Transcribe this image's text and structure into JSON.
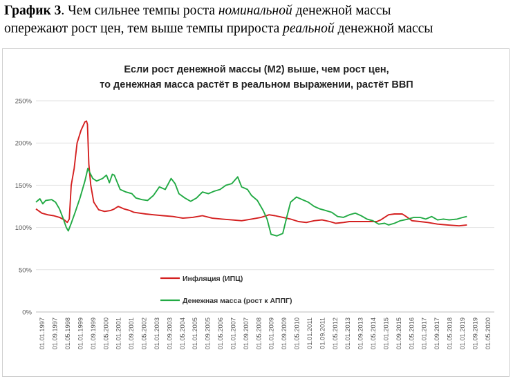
{
  "caption": {
    "label": "График 3",
    "part1": ". Чем сильнее темпы роста ",
    "italic1": "номинальной",
    "part2": " денежной массы",
    "part3": "опережают рост цен, тем выше темпы прироста ",
    "italic2": "реальной",
    "part4": " денежной массы"
  },
  "chart_data": {
    "type": "line",
    "title_line1": "Если рост денежной массы (М2) выше, чем рост цен,",
    "title_line2": "то денежная масса растёт в реальном выражении, растёт ВВП",
    "x_tick_labels": [
      "01.01.1997",
      "01.09.1997",
      "01.05.1998",
      "01.01.1999",
      "01.09.1999",
      "01.05.2000",
      "01.01.2001",
      "01.09.2001",
      "01.05.2002",
      "01.01.2003",
      "01.09.2003",
      "01.05.2004",
      "01.01.2005",
      "01.09.2005",
      "01.05.2006",
      "01.01.2007",
      "01.09.2007",
      "01.05.2008",
      "01.01.2009",
      "01.09.2009",
      "01.05.2010",
      "01.01.2011",
      "01.09.2011",
      "01.05.2012",
      "01.01.2013",
      "01.09.2013",
      "01.05.2014",
      "01.01.2015",
      "01.09.2015",
      "01.05.2016",
      "01.01.2017",
      "01.09.2017",
      "01.05.2018",
      "01.01.2019",
      "01.09.2019",
      "01.05.2020"
    ],
    "y_tick_labels": [
      "0%",
      "50%",
      "100%",
      "150%",
      "200%",
      "250%"
    ],
    "y_ticks": [
      0,
      50,
      100,
      150,
      200,
      250
    ],
    "ylim": [
      0,
      250
    ],
    "xlim": [
      1997.0,
      2020.4
    ],
    "grid": true,
    "legend_position": "bottom-left inside",
    "series": [
      {
        "name": "Инфляция (ИПЦ)",
        "color": "#d42020",
        "points": [
          [
            1997.0,
            122
          ],
          [
            1997.3,
            117
          ],
          [
            1997.6,
            115
          ],
          [
            1997.9,
            114
          ],
          [
            1998.2,
            112
          ],
          [
            1998.45,
            109
          ],
          [
            1998.6,
            106
          ],
          [
            1998.7,
            110
          ],
          [
            1998.8,
            150
          ],
          [
            1998.95,
            170
          ],
          [
            1999.1,
            200
          ],
          [
            1999.3,
            215
          ],
          [
            1999.5,
            225
          ],
          [
            1999.58,
            226
          ],
          [
            1999.63,
            222
          ],
          [
            1999.7,
            175
          ],
          [
            1999.8,
            150
          ],
          [
            1999.95,
            130
          ],
          [
            2000.2,
            121
          ],
          [
            2000.5,
            119
          ],
          [
            2000.8,
            120
          ],
          [
            2001.0,
            122
          ],
          [
            2001.2,
            125
          ],
          [
            2001.5,
            122
          ],
          [
            2001.8,
            120
          ],
          [
            2002.0,
            118
          ],
          [
            2002.3,
            117
          ],
          [
            2002.6,
            116
          ],
          [
            2003.0,
            115
          ],
          [
            2003.5,
            114
          ],
          [
            2004.0,
            113
          ],
          [
            2004.5,
            111
          ],
          [
            2005.0,
            112
          ],
          [
            2005.5,
            114
          ],
          [
            2006.0,
            111
          ],
          [
            2006.5,
            110
          ],
          [
            2007.0,
            109
          ],
          [
            2007.5,
            108
          ],
          [
            2008.0,
            110
          ],
          [
            2008.5,
            112
          ],
          [
            2008.9,
            115
          ],
          [
            2009.2,
            114
          ],
          [
            2009.6,
            112
          ],
          [
            2010.0,
            110
          ],
          [
            2010.4,
            107
          ],
          [
            2010.8,
            106
          ],
          [
            2011.2,
            108
          ],
          [
            2011.6,
            109
          ],
          [
            2012.0,
            107
          ],
          [
            2012.3,
            105
          ],
          [
            2012.7,
            106
          ],
          [
            2013.0,
            107
          ],
          [
            2013.5,
            107
          ],
          [
            2014.0,
            107
          ],
          [
            2014.4,
            107
          ],
          [
            2014.6,
            109
          ],
          [
            2014.8,
            112
          ],
          [
            2015.0,
            115
          ],
          [
            2015.3,
            116
          ],
          [
            2015.7,
            116
          ],
          [
            2015.9,
            113
          ],
          [
            2016.2,
            108
          ],
          [
            2016.6,
            107
          ],
          [
            2017.0,
            106
          ],
          [
            2017.5,
            104
          ],
          [
            2018.0,
            103
          ],
          [
            2018.6,
            102
          ],
          [
            2019.0,
            103
          ]
        ]
      },
      {
        "name": "Денежная масса (рост к АППГ)",
        "color": "#22aa44",
        "points": [
          [
            1997.0,
            130
          ],
          [
            1997.2,
            134
          ],
          [
            1997.35,
            128
          ],
          [
            1997.5,
            132
          ],
          [
            1997.8,
            133
          ],
          [
            1998.0,
            130
          ],
          [
            1998.2,
            122
          ],
          [
            1998.4,
            110
          ],
          [
            1998.55,
            100
          ],
          [
            1998.65,
            96
          ],
          [
            1998.8,
            105
          ],
          [
            1999.0,
            118
          ],
          [
            1999.25,
            135
          ],
          [
            1999.5,
            155
          ],
          [
            1999.65,
            170
          ],
          [
            1999.75,
            165
          ],
          [
            1999.9,
            158
          ],
          [
            2000.1,
            155
          ],
          [
            2000.4,
            158
          ],
          [
            2000.6,
            162
          ],
          [
            2000.75,
            153
          ],
          [
            2000.9,
            163
          ],
          [
            2001.0,
            162
          ],
          [
            2001.3,
            145
          ],
          [
            2001.6,
            142
          ],
          [
            2001.9,
            140
          ],
          [
            2002.1,
            135
          ],
          [
            2002.4,
            133
          ],
          [
            2002.7,
            132
          ],
          [
            2003.0,
            138
          ],
          [
            2003.3,
            148
          ],
          [
            2003.6,
            145
          ],
          [
            2003.9,
            158
          ],
          [
            2004.1,
            152
          ],
          [
            2004.3,
            140
          ],
          [
            2004.6,
            135
          ],
          [
            2004.9,
            131
          ],
          [
            2005.2,
            135
          ],
          [
            2005.5,
            142
          ],
          [
            2005.8,
            140
          ],
          [
            2006.1,
            143
          ],
          [
            2006.4,
            145
          ],
          [
            2006.7,
            150
          ],
          [
            2007.0,
            152
          ],
          [
            2007.3,
            160
          ],
          [
            2007.5,
            148
          ],
          [
            2007.8,
            145
          ],
          [
            2008.0,
            138
          ],
          [
            2008.3,
            132
          ],
          [
            2008.6,
            120
          ],
          [
            2008.8,
            110
          ],
          [
            2009.0,
            92
          ],
          [
            2009.3,
            90
          ],
          [
            2009.6,
            93
          ],
          [
            2009.8,
            112
          ],
          [
            2010.0,
            130
          ],
          [
            2010.3,
            136
          ],
          [
            2010.6,
            133
          ],
          [
            2010.9,
            130
          ],
          [
            2011.2,
            125
          ],
          [
            2011.5,
            122
          ],
          [
            2011.8,
            120
          ],
          [
            2012.1,
            118
          ],
          [
            2012.4,
            113
          ],
          [
            2012.7,
            112
          ],
          [
            2013.0,
            115
          ],
          [
            2013.3,
            117
          ],
          [
            2013.6,
            114
          ],
          [
            2013.9,
            110
          ],
          [
            2014.2,
            108
          ],
          [
            2014.5,
            104
          ],
          [
            2014.8,
            105
          ],
          [
            2015.0,
            103
          ],
          [
            2015.3,
            105
          ],
          [
            2015.6,
            108
          ],
          [
            2016.0,
            110
          ],
          [
            2016.3,
            112
          ],
          [
            2016.6,
            112
          ],
          [
            2016.9,
            110
          ],
          [
            2017.2,
            113
          ],
          [
            2017.5,
            109
          ],
          [
            2017.8,
            110
          ],
          [
            2018.1,
            109
          ],
          [
            2018.5,
            110
          ],
          [
            2018.8,
            112
          ],
          [
            2019.0,
            113
          ]
        ]
      }
    ]
  }
}
